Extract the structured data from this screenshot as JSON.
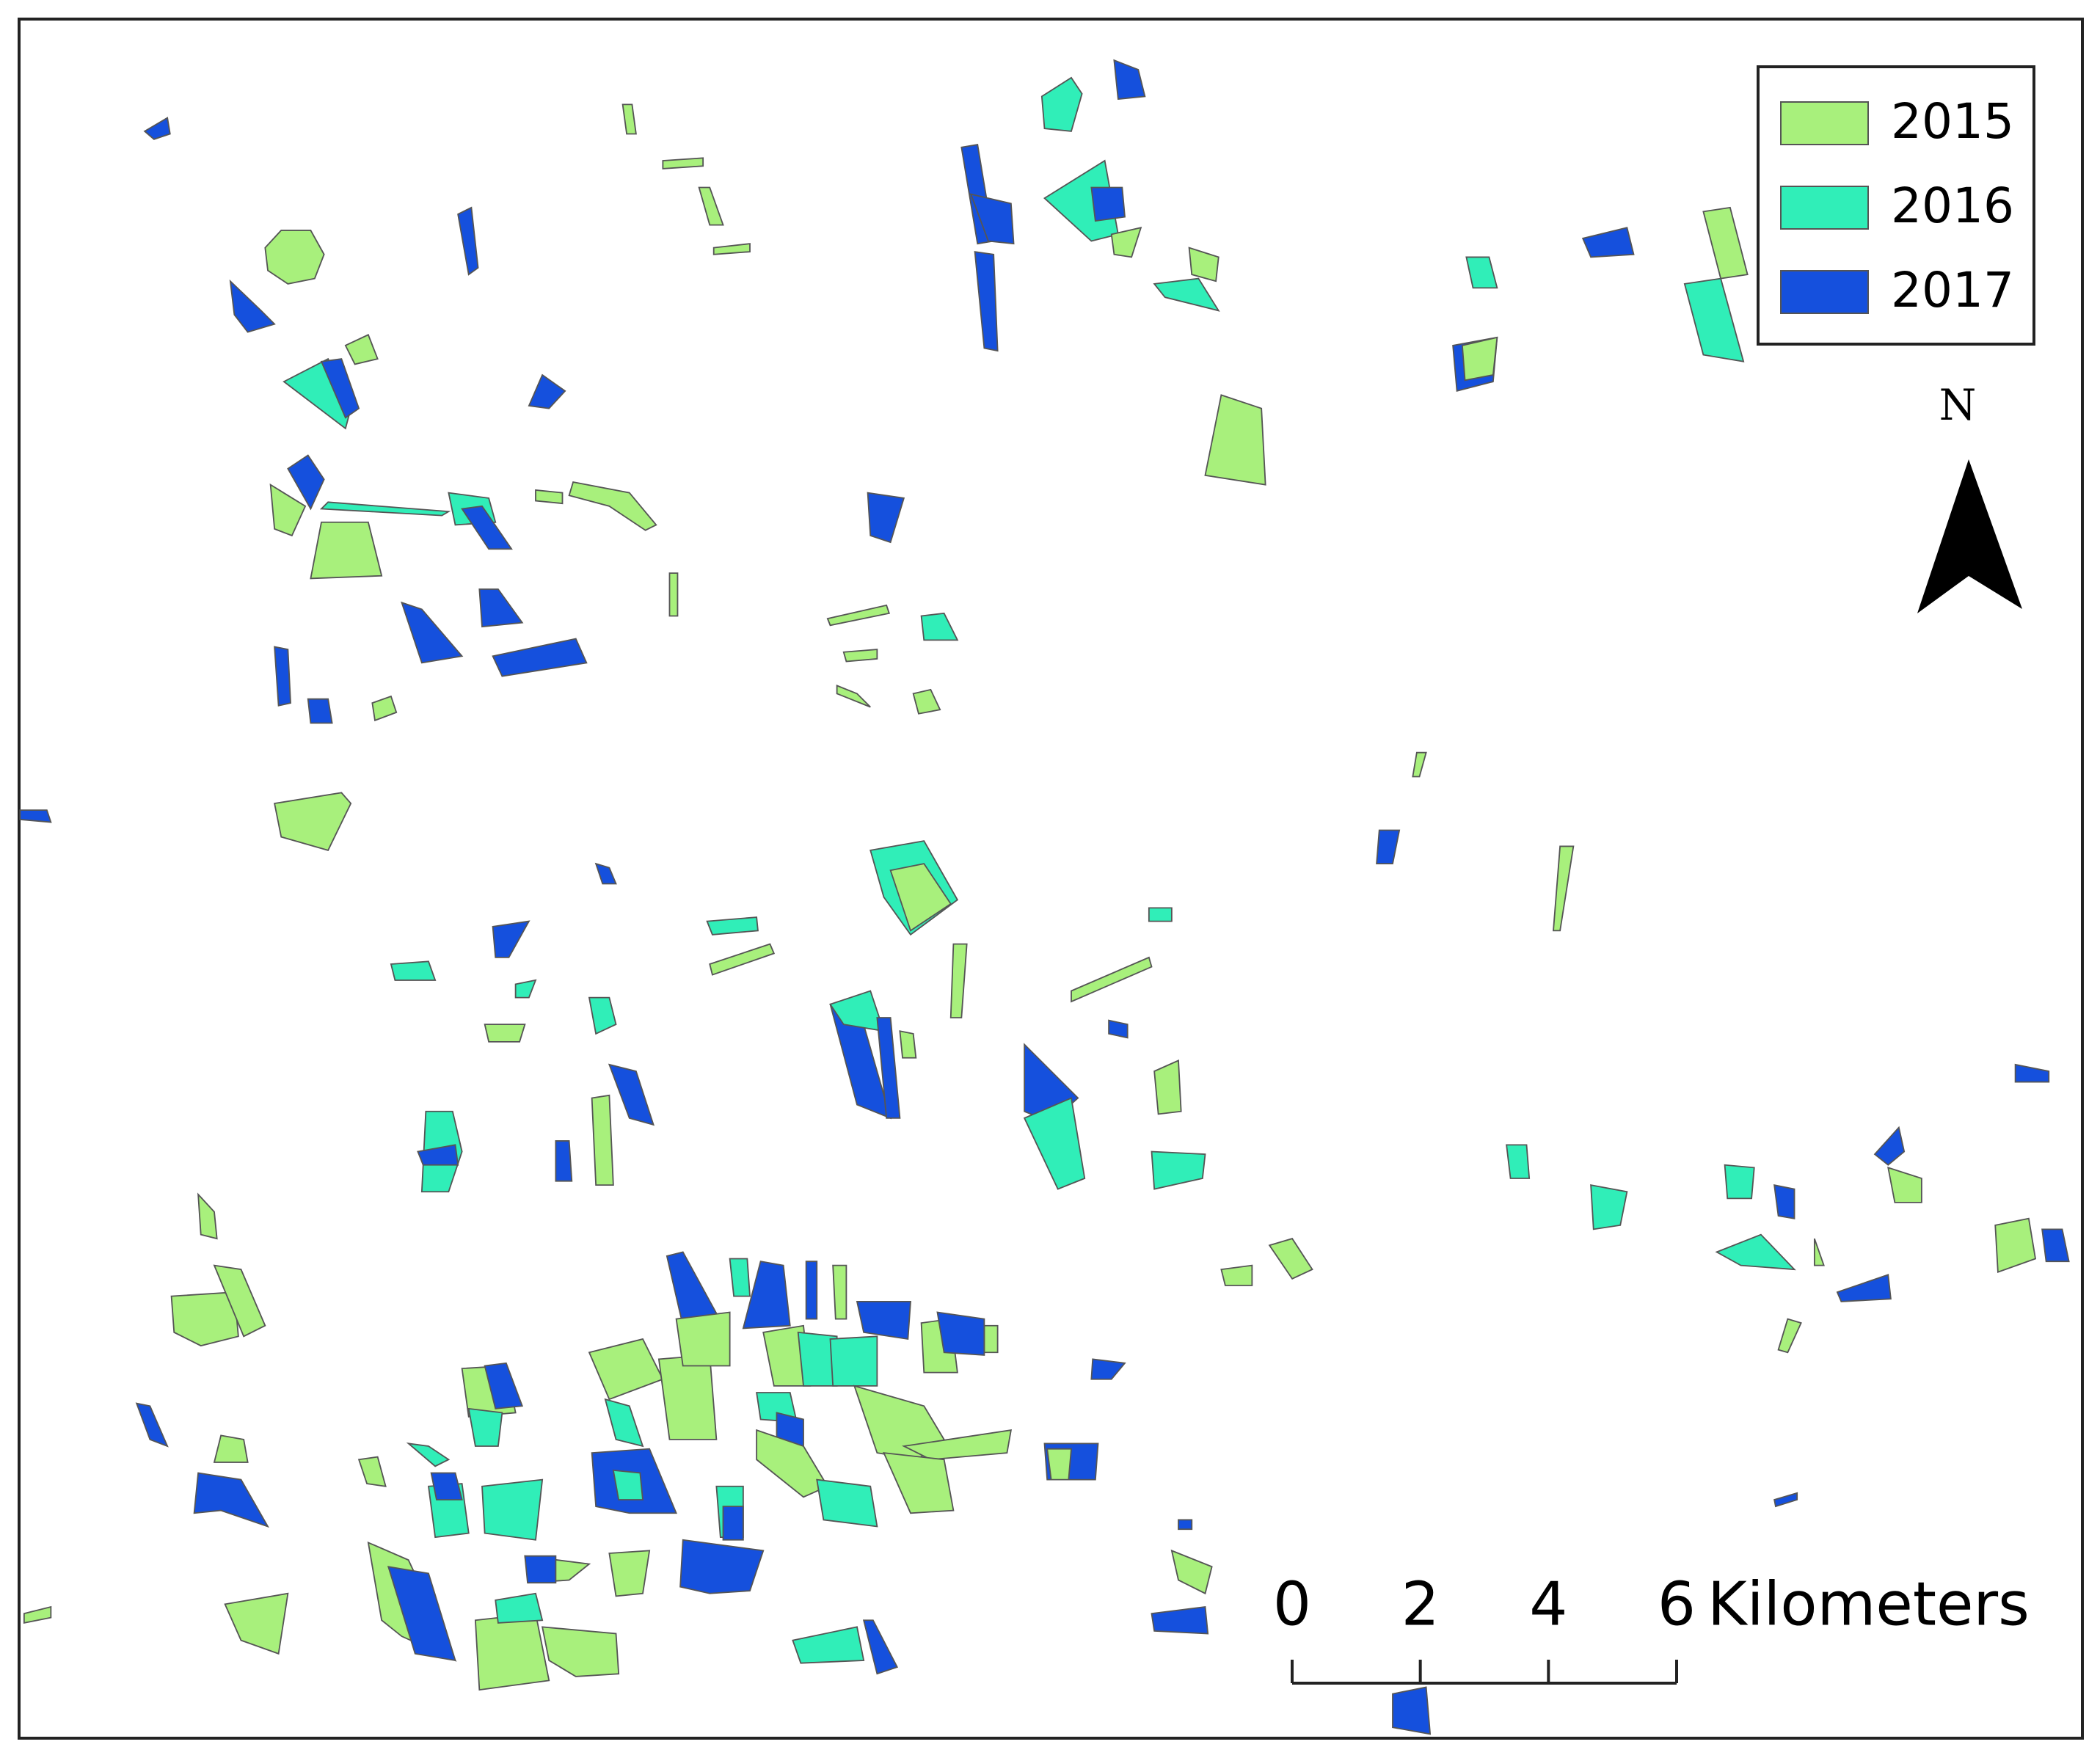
{
  "legend": {
    "items": [
      {
        "label": "2015",
        "color": "#a8f07c"
      },
      {
        "label": "2016",
        "color": "#30eeb8"
      },
      {
        "label": "2017",
        "color": "#1550dd"
      }
    ]
  },
  "north_arrow": {
    "label": "N"
  },
  "scale_bar": {
    "ticks": [
      0,
      2,
      4,
      6
    ],
    "unit": "Kilometers"
  }
}
